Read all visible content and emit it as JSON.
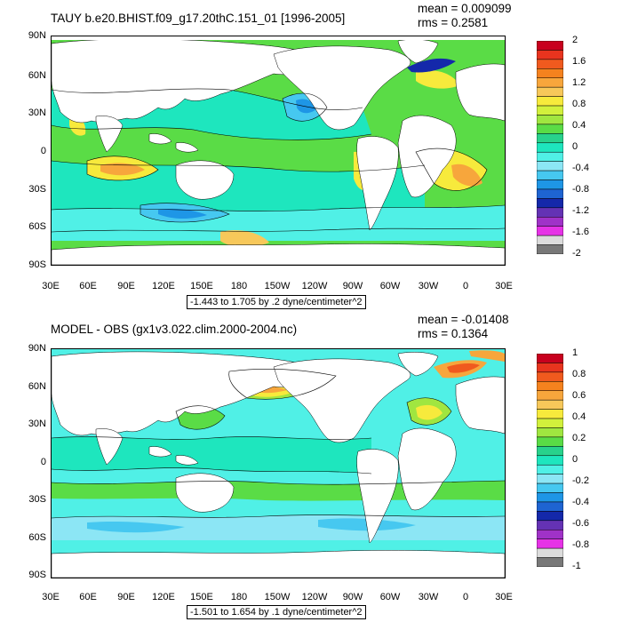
{
  "panels": [
    {
      "title": "TAUY b.e20.BHIST.f09_g17.20thC.151_01 [1996-2005]",
      "mean": "mean = 0.009099",
      "rms": "rms = 0.2581",
      "range_label": "-1.443 to 1.705 by .2 dyne/centimeter^2",
      "lat_labels": [
        "90N",
        "60N",
        "30N",
        "0",
        "30S",
        "60S",
        "90S"
      ],
      "lon_labels": [
        "30E",
        "60E",
        "90E",
        "120E",
        "150E",
        "180",
        "150W",
        "120W",
        "90W",
        "60W",
        "30W",
        "0",
        "30E"
      ],
      "colorbar": {
        "labels": [
          "2",
          "1.6",
          "1.2",
          "0.8",
          "0.4",
          "0",
          "-0.4",
          "-0.8",
          "-1.2",
          "-1.6",
          "-2"
        ],
        "colors": [
          "#c8001e",
          "#e8341e",
          "#f05a1e",
          "#f5821e",
          "#f7a63c",
          "#f7c85a",
          "#f7ea3c",
          "#d2f03c",
          "#a0e640",
          "#5adc46",
          "#28d28c",
          "#1ee6be",
          "#50f0e6",
          "#8ce6f5",
          "#46c8f0",
          "#1e96e6",
          "#1e64d2",
          "#1428aa",
          "#6432b4",
          "#a032c8",
          "#e632e6",
          "#dcdcdc",
          "#787878"
        ]
      }
    },
    {
      "title": "MODEL - OBS (gx1v3.022.clim.2000-2004.nc)",
      "mean": "mean = -0.01408",
      "rms": "rms = 0.1364",
      "range_label": "-1.501 to 1.654 by .1 dyne/centimeter^2",
      "lat_labels": [
        "90N",
        "60N",
        "30N",
        "0",
        "30S",
        "60S",
        "90S"
      ],
      "lon_labels": [
        "30E",
        "60E",
        "90E",
        "120E",
        "150E",
        "180",
        "150W",
        "120W",
        "90W",
        "60W",
        "30W",
        "0",
        "30E"
      ],
      "colorbar": {
        "labels": [
          "1",
          "0.8",
          "0.6",
          "0.4",
          "0.2",
          "0",
          "-0.2",
          "-0.4",
          "-0.6",
          "-0.8",
          "-1"
        ],
        "colors": [
          "#c8001e",
          "#e8341e",
          "#f05a1e",
          "#f5821e",
          "#f7a63c",
          "#f7c85a",
          "#f7ea3c",
          "#d2f03c",
          "#a0e640",
          "#5adc46",
          "#28d28c",
          "#1ee6be",
          "#50f0e6",
          "#8ce6f5",
          "#46c8f0",
          "#1e96e6",
          "#1e64d2",
          "#1428aa",
          "#6432b4",
          "#a032c8",
          "#e632e6",
          "#dcdcdc",
          "#787878"
        ]
      }
    }
  ]
}
